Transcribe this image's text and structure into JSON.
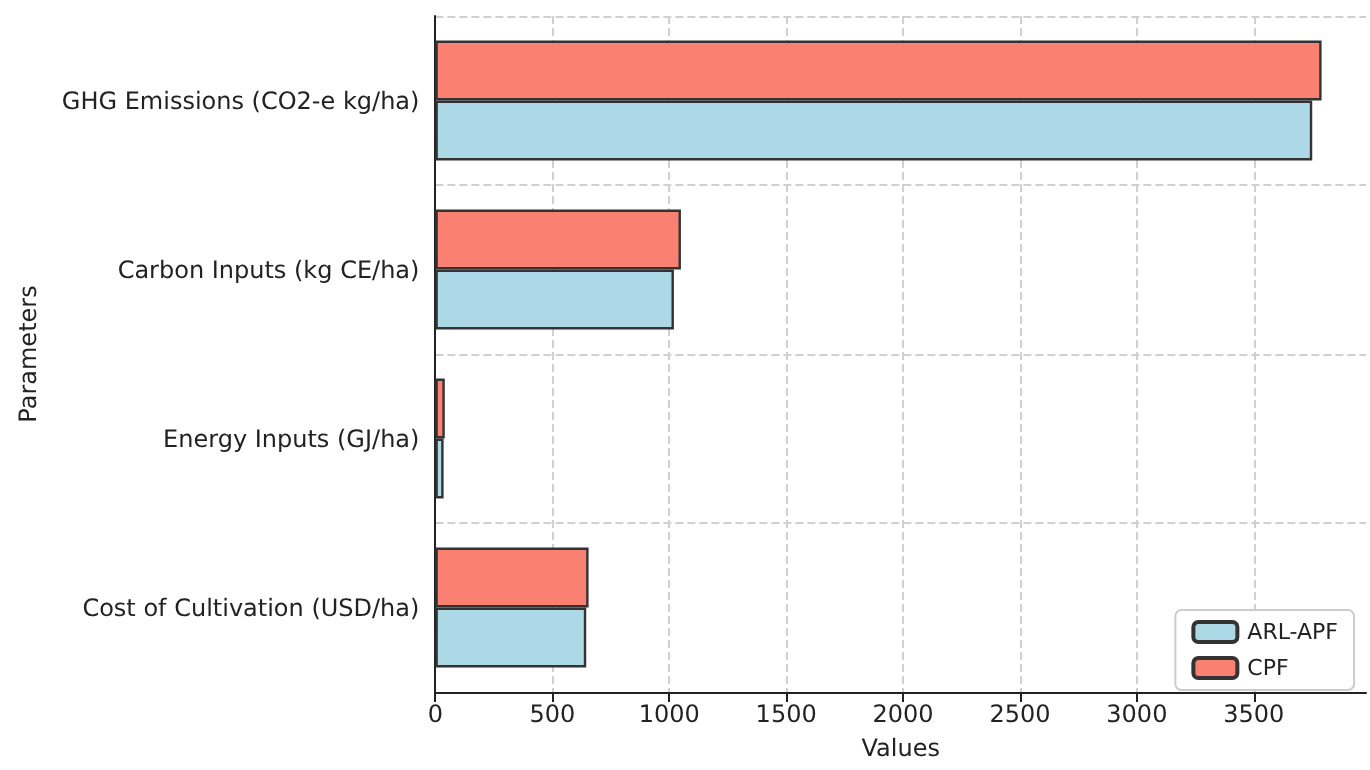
{
  "chart_data": {
    "type": "bar",
    "orientation": "horizontal",
    "xlabel": "Values",
    "ylabel": "Parameters",
    "categories": [
      "GHG Emissions (CO2-e kg/ha)",
      "Carbon Inputs (kg CE/ha)",
      "Energy Inputs (GJ/ha)",
      "Cost of Cultivation (USD/ha)"
    ],
    "series": [
      {
        "name": "ARL-APF",
        "color": "#add8e6",
        "values": [
          3750,
          1020,
          35,
          645
        ]
      },
      {
        "name": "CPF",
        "color": "#fa8072",
        "values": [
          3790,
          1050,
          40,
          655
        ]
      }
    ],
    "xlim": [
      0,
      3980
    ],
    "xticks": [
      0,
      500,
      1000,
      1500,
      2000,
      2500,
      3000,
      3500
    ],
    "grid": true,
    "legend": "bottom right"
  }
}
